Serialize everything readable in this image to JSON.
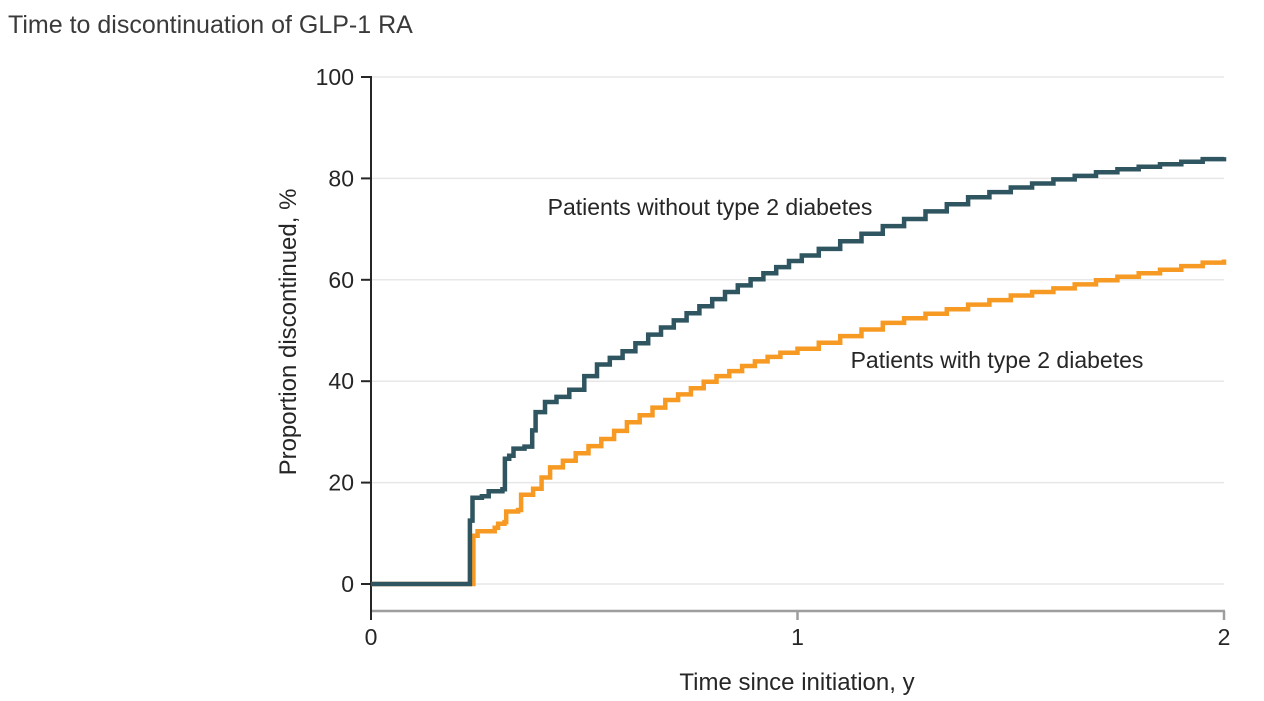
{
  "figure": {
    "title": "Time to discontinuation of GLP-1 RA"
  },
  "chart_data": {
    "type": "line",
    "subtype": "kaplan-meier-cumulative-incidence-step",
    "title": "Time to discontinuation of GLP-1 RA",
    "xlabel": "Time since initiation, y",
    "ylabel": "Proportion discontinued, %",
    "xlim": [
      0,
      2
    ],
    "ylim": [
      0,
      100
    ],
    "x_ticks": [
      0,
      1,
      2
    ],
    "x_tick_labels": [
      "0",
      "1",
      "2"
    ],
    "y_ticks": [
      0,
      20,
      40,
      60,
      80,
      100
    ],
    "y_tick_labels": [
      "0",
      "20",
      "40",
      "60",
      "80",
      "100"
    ],
    "grid": "horizontal",
    "legend_position": "inline-annotations",
    "style": {
      "grid_color": "#e7e7e7",
      "x_axis_color": "#9e9e9e",
      "y_axis_color": "#262626",
      "text_color": "#262626"
    },
    "series": [
      {
        "name": "Patients without type 2 diabetes",
        "color": "#2E5560",
        "points": [
          [
            0,
            0
          ],
          [
            0.23,
            0
          ],
          [
            0.232,
            12.5
          ],
          [
            0.238,
            17
          ],
          [
            0.26,
            17.3
          ],
          [
            0.276,
            18.3
          ],
          [
            0.308,
            18.7
          ],
          [
            0.314,
            24.7
          ],
          [
            0.324,
            25.3
          ],
          [
            0.334,
            26.7
          ],
          [
            0.36,
            27.1
          ],
          [
            0.378,
            30.3
          ],
          [
            0.386,
            33.9
          ],
          [
            0.408,
            35.9
          ],
          [
            0.435,
            36.9
          ],
          [
            0.465,
            38.3
          ],
          [
            0.5,
            41
          ],
          [
            0.53,
            43.3
          ],
          [
            0.56,
            44.6
          ],
          [
            0.59,
            45.9
          ],
          [
            0.62,
            47.5
          ],
          [
            0.65,
            49.2
          ],
          [
            0.68,
            50.6
          ],
          [
            0.71,
            52
          ],
          [
            0.74,
            53.4
          ],
          [
            0.77,
            54.8
          ],
          [
            0.8,
            56.2
          ],
          [
            0.83,
            57.6
          ],
          [
            0.86,
            58.9
          ],
          [
            0.89,
            60.1
          ],
          [
            0.92,
            61.3
          ],
          [
            0.95,
            62.5
          ],
          [
            0.98,
            63.7
          ],
          [
            1.01,
            64.8
          ],
          [
            1.05,
            66.1
          ],
          [
            1.1,
            67.6
          ],
          [
            1.15,
            69.1
          ],
          [
            1.2,
            70.6
          ],
          [
            1.25,
            72
          ],
          [
            1.3,
            73.5
          ],
          [
            1.35,
            74.9
          ],
          [
            1.4,
            76.3
          ],
          [
            1.45,
            77.3
          ],
          [
            1.5,
            78.2
          ],
          [
            1.55,
            79
          ],
          [
            1.6,
            79.8
          ],
          [
            1.65,
            80.5
          ],
          [
            1.7,
            81.2
          ],
          [
            1.75,
            81.8
          ],
          [
            1.8,
            82.3
          ],
          [
            1.85,
            82.8
          ],
          [
            1.9,
            83.3
          ],
          [
            1.95,
            83.8
          ],
          [
            2,
            84.2
          ]
        ]
      },
      {
        "name": "Patients with type 2 diabetes",
        "color": "#F79A23",
        "points": [
          [
            0,
            0
          ],
          [
            0.238,
            0
          ],
          [
            0.24,
            9.5
          ],
          [
            0.25,
            10.4
          ],
          [
            0.29,
            11.1
          ],
          [
            0.298,
            11.9
          ],
          [
            0.313,
            12.2
          ],
          [
            0.317,
            14.3
          ],
          [
            0.345,
            14.6
          ],
          [
            0.352,
            17.6
          ],
          [
            0.38,
            18.8
          ],
          [
            0.4,
            21
          ],
          [
            0.42,
            23
          ],
          [
            0.45,
            24.3
          ],
          [
            0.48,
            25.8
          ],
          [
            0.51,
            27.2
          ],
          [
            0.54,
            28.6
          ],
          [
            0.57,
            30.2
          ],
          [
            0.6,
            31.9
          ],
          [
            0.63,
            33.3
          ],
          [
            0.66,
            34.8
          ],
          [
            0.69,
            36.3
          ],
          [
            0.72,
            37.4
          ],
          [
            0.75,
            38.6
          ],
          [
            0.78,
            39.9
          ],
          [
            0.81,
            41
          ],
          [
            0.84,
            42
          ],
          [
            0.87,
            43
          ],
          [
            0.9,
            43.9
          ],
          [
            0.93,
            44.8
          ],
          [
            0.96,
            45.6
          ],
          [
            1,
            46.4
          ],
          [
            1.05,
            47.6
          ],
          [
            1.1,
            48.9
          ],
          [
            1.15,
            50.2
          ],
          [
            1.2,
            51.5
          ],
          [
            1.25,
            52.4
          ],
          [
            1.3,
            53.3
          ],
          [
            1.35,
            54.2
          ],
          [
            1.4,
            55.1
          ],
          [
            1.45,
            56
          ],
          [
            1.5,
            56.9
          ],
          [
            1.55,
            57.6
          ],
          [
            1.6,
            58.3
          ],
          [
            1.65,
            59.1
          ],
          [
            1.7,
            59.9
          ],
          [
            1.75,
            60.6
          ],
          [
            1.8,
            61.3
          ],
          [
            1.85,
            62
          ],
          [
            1.9,
            62.7
          ],
          [
            1.95,
            63.4
          ],
          [
            2,
            64
          ]
        ]
      }
    ]
  }
}
